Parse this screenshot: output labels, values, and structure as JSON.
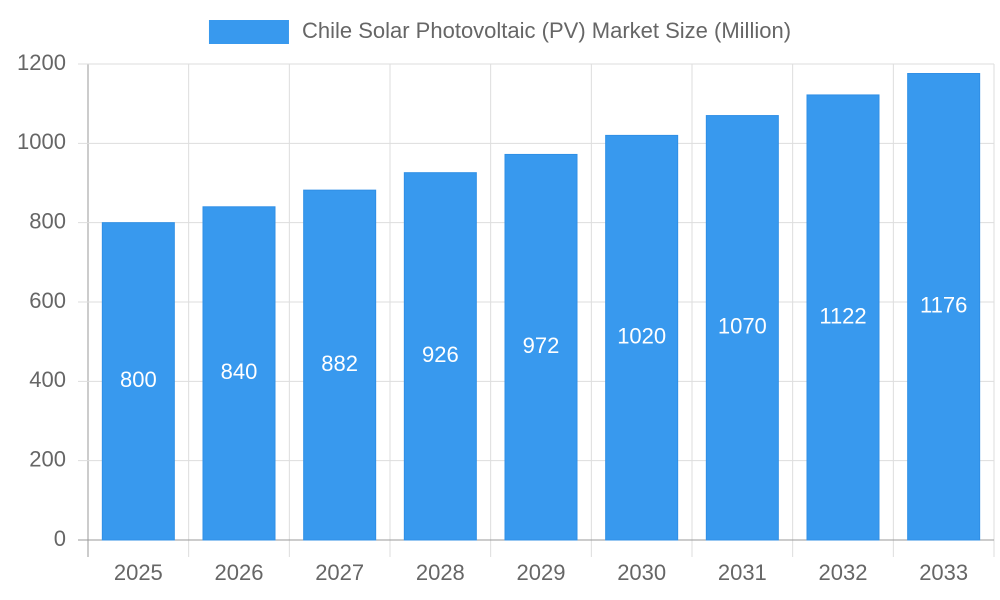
{
  "chart_data": {
    "type": "bar",
    "categories": [
      "2025",
      "2026",
      "2027",
      "2028",
      "2029",
      "2030",
      "2031",
      "2032",
      "2033"
    ],
    "series": [
      {
        "name": "Chile Solar Photovoltaic (PV) Market Size (Million)",
        "color": "#3899ee",
        "values": [
          800,
          840,
          882,
          926,
          972,
          1020,
          1070,
          1122,
          1176
        ]
      }
    ],
    "ylim": [
      0,
      1200
    ],
    "yticks": [
      0,
      200,
      400,
      600,
      800,
      1000,
      1200
    ],
    "grid": true,
    "legend": "top",
    "data_labels": true
  }
}
